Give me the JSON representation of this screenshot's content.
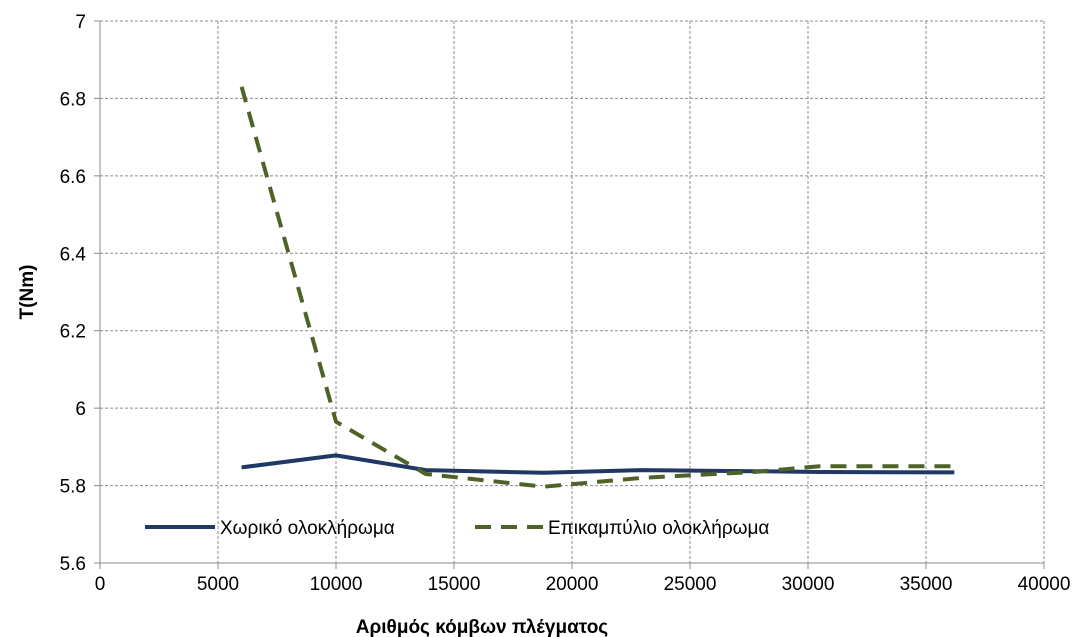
{
  "chart_data": {
    "type": "line",
    "title": "",
    "xlabel": "Αριθμός κόμβων πλέγματος",
    "ylabel": "T(Nm)",
    "xlim": [
      0,
      40000
    ],
    "ylim": [
      5.6,
      7.0
    ],
    "xticks": [
      "0",
      "5000",
      "10000",
      "15000",
      "20000",
      "25000",
      "30000",
      "35000",
      "40000"
    ],
    "yticks": [
      "5.6",
      "5.8",
      "6",
      "6.2",
      "6.4",
      "6.6",
      "6.8",
      "7"
    ],
    "grid": true,
    "legend_position": "bottom-left",
    "series": [
      {
        "name": "Χωρικό ολοκλήρωμα",
        "color": "#1f3864",
        "dash": "solid",
        "x": [
          6000,
          10000,
          13800,
          18800,
          23000,
          27700,
          30500,
          36200
        ],
        "y": [
          5.847,
          5.878,
          5.84,
          5.833,
          5.84,
          5.837,
          5.835,
          5.834
        ]
      },
      {
        "name": "Επικαμπύλιο ολοκλήρωμα",
        "color": "#4f6228",
        "dash": "dashed",
        "x": [
          6000,
          10000,
          13800,
          18800,
          23000,
          27700,
          30500,
          36200
        ],
        "y": [
          6.83,
          5.965,
          5.83,
          5.797,
          5.82,
          5.835,
          5.85,
          5.85
        ]
      }
    ]
  }
}
